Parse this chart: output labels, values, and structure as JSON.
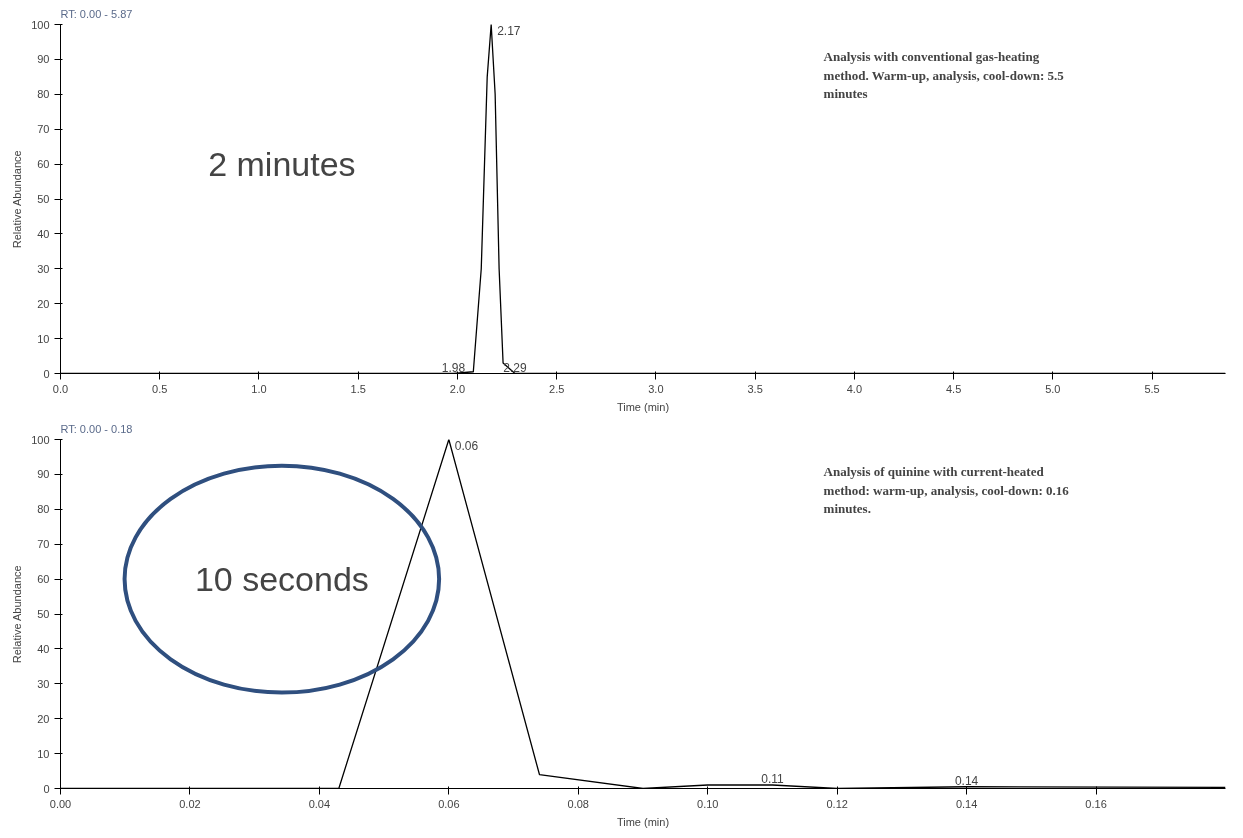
{
  "chart_data": [
    {
      "type": "line",
      "title": "RT: 0.00 - 5.87",
      "xlabel": "Time (min)",
      "ylabel": "Relative Abundance",
      "xlim": [
        0,
        5.87
      ],
      "xticks": [
        {
          "value": 0,
          "label": "0.0"
        },
        {
          "value": 0.5,
          "label": "0.5"
        },
        {
          "value": 1,
          "label": "1.0"
        },
        {
          "value": 1.5,
          "label": "1.5"
        },
        {
          "value": 2,
          "label": "2.0"
        },
        {
          "value": 2.5,
          "label": "2.5"
        },
        {
          "value": 3,
          "label": "3.0"
        },
        {
          "value": 3.5,
          "label": "3.5"
        },
        {
          "value": 4,
          "label": "4.0"
        },
        {
          "value": 4.5,
          "label": "4.5"
        },
        {
          "value": 5,
          "label": "5.0"
        },
        {
          "value": 5.5,
          "label": "5.5"
        }
      ],
      "ylim": [
        0,
        100
      ],
      "yticks": [
        0,
        10,
        20,
        30,
        40,
        50,
        60,
        70,
        80,
        90,
        100
      ],
      "marker": "none",
      "line_style": "solid",
      "series": [
        {
          "color": "#000000",
          "x": [
            0,
            1.98,
            2.08,
            2.12,
            2.15,
            2.17,
            2.19,
            2.21,
            2.23,
            2.29,
            5.87
          ],
          "values": [
            0,
            0,
            0.5,
            30,
            85,
            100,
            80,
            30,
            3,
            0,
            0
          ]
        }
      ],
      "annotations": [
        "Analysis with conventional gas-heating method. Warm-up, analysis, cool-down: 5.5 minutes",
        "2 minutes",
        {
          "text": "2.17",
          "x": 2.17,
          "y": 100
        },
        {
          "text": "1.98",
          "x": 1.98,
          "y": 0
        },
        {
          "text": "2.29",
          "x": 2.29,
          "y": 0
        }
      ]
    },
    {
      "type": "line",
      "title": "RT: 0.00 - 0.18",
      "xlabel": "Time (min)",
      "ylabel": "Relative Abundance",
      "xlim": [
        0,
        0.18
      ],
      "xticks": [
        {
          "value": 0,
          "label": "0.00"
        },
        {
          "value": 0.02,
          "label": "0.02"
        },
        {
          "value": 0.04,
          "label": "0.04"
        },
        {
          "value": 0.06,
          "label": "0.06"
        },
        {
          "value": 0.08,
          "label": "0.08"
        },
        {
          "value": 0.1,
          "label": "0.10"
        },
        {
          "value": 0.12,
          "label": "0.12"
        },
        {
          "value": 0.14,
          "label": "0.14"
        },
        {
          "value": 0.16,
          "label": "0.16"
        }
      ],
      "ylim": [
        0,
        100
      ],
      "yticks": [
        0,
        10,
        20,
        30,
        40,
        50,
        60,
        70,
        80,
        90,
        100
      ],
      "marker": "none",
      "line_style": "solid",
      "series": [
        {
          "color": "#000000",
          "x": [
            0,
            0.043,
            0.06,
            0.074,
            0.09,
            0.1,
            0.105,
            0.11,
            0.12,
            0.14,
            0.18
          ],
          "values": [
            0,
            0,
            100,
            4,
            0,
            1,
            1,
            1,
            0,
            0.5,
            0.3
          ]
        }
      ],
      "annotations": [
        "Analysis of quinine with current-heated method: warm-up, analysis, cool-down: 0.16 minutes.",
        "10 seconds",
        {
          "text": "0.06",
          "x": 0.06,
          "y": 100
        },
        {
          "text": "0.11",
          "x": 0.11,
          "y": 1
        },
        {
          "text": "0.14",
          "x": 0.14,
          "y": 0.5
        }
      ]
    }
  ]
}
